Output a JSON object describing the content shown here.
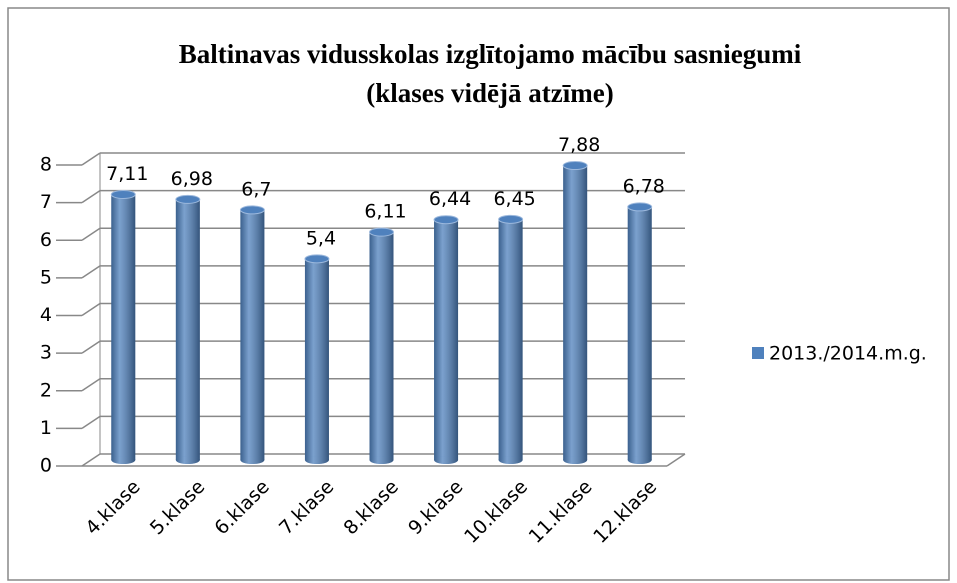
{
  "chart_data": {
    "type": "bar",
    "title": "Baltinavas vidusskolas izglītojamo mācību sasniegumi",
    "subtitle": "(klases vidējā atzīme)",
    "categories": [
      "4.klase",
      "5.klase",
      "6.klase",
      "7.klase",
      "8.klase",
      "9.klase",
      "10.klase",
      "11.klase",
      "12.klase"
    ],
    "series": [
      {
        "name": "2013./2014.m.g.",
        "color": "#4f81bd",
        "values": [
          7.11,
          6.98,
          6.7,
          5.4,
          6.11,
          6.44,
          6.45,
          7.88,
          6.78
        ],
        "value_labels": [
          "7,11",
          "6,98",
          "6,7",
          "5,4",
          "6,11",
          "6,44",
          "6,45",
          "7,88",
          "6,78"
        ]
      }
    ],
    "ylim": [
      0,
      8
    ],
    "yticks": [
      0,
      1,
      2,
      3,
      4,
      5,
      6,
      7,
      8
    ],
    "grid": true,
    "legend": "right"
  }
}
